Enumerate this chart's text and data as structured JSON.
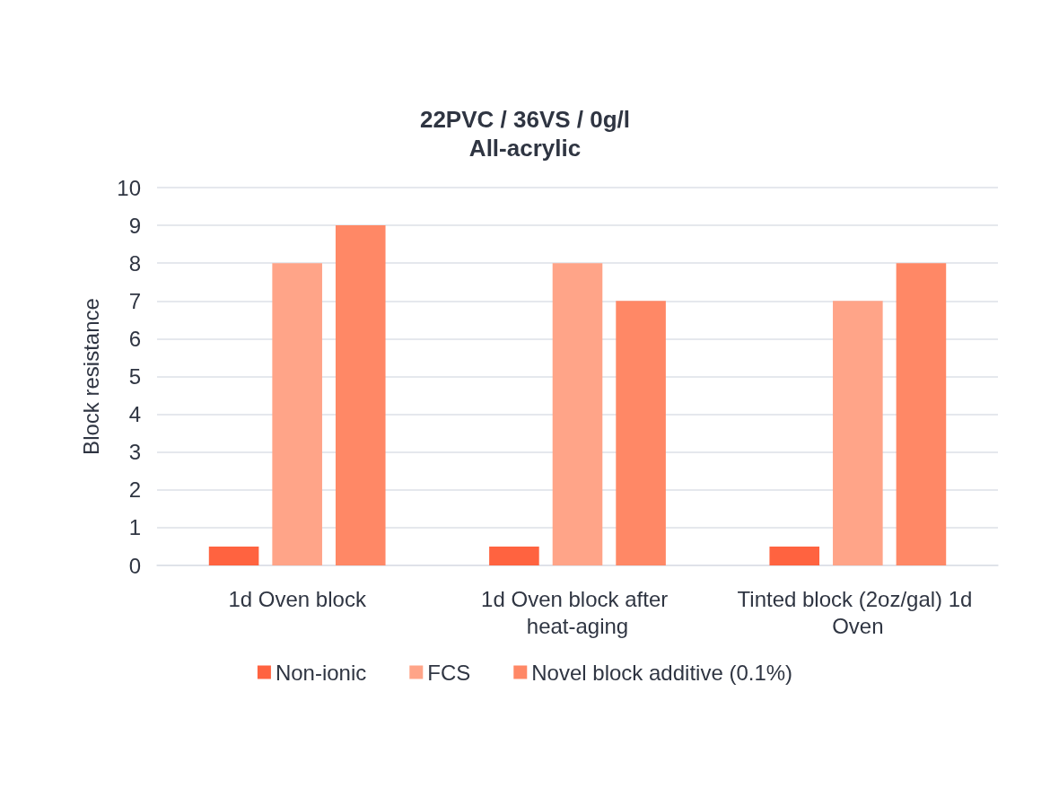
{
  "chart_data": {
    "type": "bar",
    "title": "22PVC / 36VS / 0g/l\nAll-acrylic",
    "ylabel": "Block resistance",
    "categories": [
      "1d Oven block",
      "1d Oven block after heat-aging",
      "Tinted block (2oz/gal) 1d Oven"
    ],
    "series": [
      {
        "name": "Non-ionic",
        "color": "#ff6340",
        "values": [
          0.5,
          0.5,
          0.5
        ]
      },
      {
        "name": "FCS",
        "color": "#ffa488",
        "values": [
          8,
          8,
          7
        ]
      },
      {
        "name": "Novel block additive (0.1%)",
        "color": "#ff8866",
        "values": [
          9,
          7,
          8
        ]
      }
    ],
    "ylim": [
      0,
      10
    ],
    "yticks": [
      0,
      1,
      2,
      3,
      4,
      5,
      6,
      7,
      8,
      9,
      10
    ],
    "grid": "y",
    "legend": "bottom"
  }
}
